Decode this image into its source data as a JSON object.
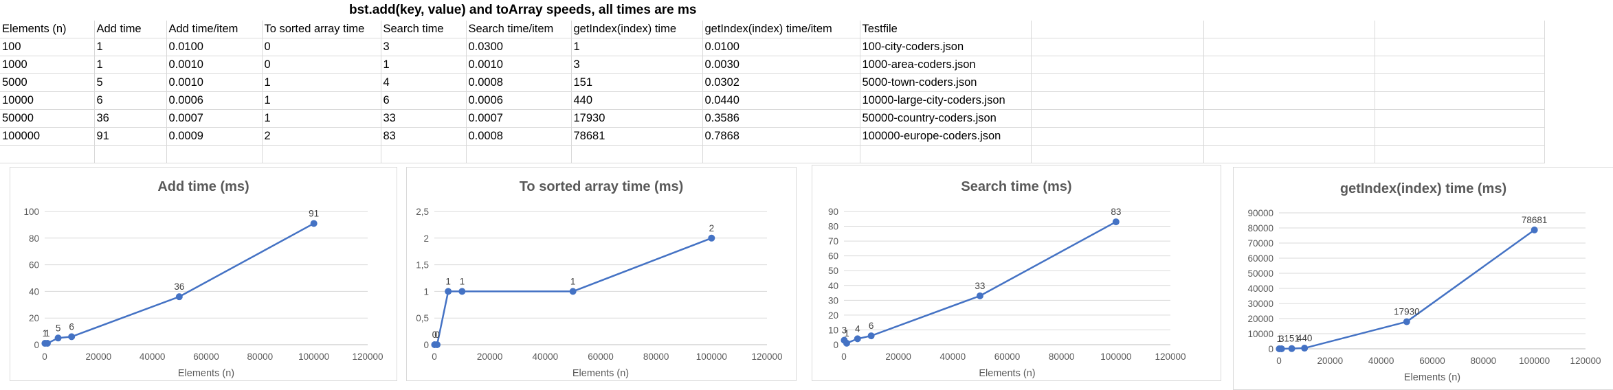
{
  "sheet": {
    "title": "bst.add(key, value) and toArray speeds, all times are ms",
    "headers": [
      "Elements (n)",
      "Add time",
      "Add time/item",
      "To sorted array time",
      "Search time",
      "Search time/item",
      "getIndex(index) time",
      "getIndex(index) time/item",
      "Testfile"
    ],
    "rows": [
      [
        "100",
        "1",
        "0.0100",
        "0",
        "3",
        "0.0300",
        "1",
        "0.0100",
        "100-city-coders.json"
      ],
      [
        "1000",
        "1",
        "0.0010",
        "0",
        "1",
        "0.0010",
        "3",
        "0.0030",
        "1000-area-coders.json"
      ],
      [
        "5000",
        "5",
        "0.0010",
        "1",
        "4",
        "0.0008",
        "151",
        "0.0302",
        "5000-town-coders.json"
      ],
      [
        "10000",
        "6",
        "0.0006",
        "1",
        "6",
        "0.0006",
        "440",
        "0.0440",
        "10000-large-city-coders.json"
      ],
      [
        "50000",
        "36",
        "0.0007",
        "1",
        "33",
        "0.0007",
        "17930",
        "0.3586",
        "50000-country-coders.json"
      ],
      [
        "100000",
        "91",
        "0.0009",
        "2",
        "83",
        "0.0008",
        "78681",
        "0.7868",
        "100000-europe-coders.json"
      ]
    ]
  },
  "chart_data": [
    {
      "type": "line",
      "title": "Add time (ms)",
      "xlabel": "Elements (n)",
      "x": [
        100,
        1000,
        5000,
        10000,
        50000,
        100000
      ],
      "y": [
        1,
        1,
        5,
        6,
        36,
        91
      ],
      "data_labels": [
        "1",
        "1",
        "5",
        "6",
        "36",
        "91"
      ],
      "xlim": [
        0,
        120000
      ],
      "xticks": [
        0,
        20000,
        40000,
        60000,
        80000,
        100000,
        120000
      ],
      "xtick_labels": [
        "0",
        "20000",
        "40000",
        "60000",
        "80000",
        "100000",
        "120000"
      ],
      "ylim": [
        0,
        100
      ],
      "yticks": [
        0,
        20,
        40,
        60,
        80,
        100
      ],
      "ytick_labels": [
        "0",
        "20",
        "40",
        "60",
        "80",
        "100"
      ],
      "grid": true,
      "legend": "none",
      "color": "#4472c4"
    },
    {
      "type": "line",
      "title": "To sorted array time (ms)",
      "xlabel": "Elements (n)",
      "x": [
        100,
        1000,
        5000,
        10000,
        50000,
        100000
      ],
      "y": [
        0,
        0,
        1,
        1,
        1,
        2
      ],
      "data_labels": [
        "0",
        "0",
        "1",
        "1",
        "1",
        "2"
      ],
      "xlim": [
        0,
        120000
      ],
      "xticks": [
        0,
        20000,
        40000,
        60000,
        80000,
        100000,
        120000
      ],
      "xtick_labels": [
        "0",
        "20000",
        "40000",
        "60000",
        "80000",
        "100000",
        "120000"
      ],
      "ylim": [
        0,
        2.5
      ],
      "yticks": [
        0,
        0.5,
        1,
        1.5,
        2,
        2.5
      ],
      "ytick_labels": [
        "0",
        "0,5",
        "1",
        "1,5",
        "2",
        "2,5"
      ],
      "grid": true,
      "legend": "none",
      "color": "#4472c4"
    },
    {
      "type": "line",
      "title": "Search time (ms)",
      "xlabel": "Elements (n)",
      "x": [
        100,
        1000,
        5000,
        10000,
        50000,
        100000
      ],
      "y": [
        3,
        1,
        4,
        6,
        33,
        83
      ],
      "data_labels": [
        "3",
        "1",
        "4",
        "6",
        "33",
        "83"
      ],
      "xlim": [
        0,
        120000
      ],
      "xticks": [
        0,
        20000,
        40000,
        60000,
        80000,
        100000,
        120000
      ],
      "xtick_labels": [
        "0",
        "20000",
        "40000",
        "60000",
        "80000",
        "100000",
        "120000"
      ],
      "ylim": [
        0,
        90
      ],
      "yticks": [
        0,
        10,
        20,
        30,
        40,
        50,
        60,
        70,
        80,
        90
      ],
      "ytick_labels": [
        "0",
        "10",
        "20",
        "30",
        "40",
        "50",
        "60",
        "70",
        "80",
        "90"
      ],
      "grid": true,
      "legend": "none",
      "color": "#4472c4"
    },
    {
      "type": "line",
      "title": "getIndex(index) time (ms)",
      "xlabel": "Elements (n)",
      "x": [
        100,
        1000,
        5000,
        10000,
        50000,
        100000
      ],
      "y": [
        1,
        3,
        151,
        440,
        17930,
        78681
      ],
      "data_labels": [
        "1",
        "3",
        "151",
        "440",
        "17930",
        "78681"
      ],
      "xlim": [
        0,
        120000
      ],
      "xticks": [
        0,
        20000,
        40000,
        60000,
        80000,
        100000,
        120000
      ],
      "xtick_labels": [
        "0",
        "20000",
        "40000",
        "60000",
        "80000",
        "100000",
        "120000"
      ],
      "ylim": [
        0,
        90000
      ],
      "yticks": [
        0,
        10000,
        20000,
        30000,
        40000,
        50000,
        60000,
        70000,
        80000,
        90000
      ],
      "ytick_labels": [
        "0",
        "10000",
        "20000",
        "30000",
        "40000",
        "50000",
        "60000",
        "70000",
        "80000",
        "90000"
      ],
      "grid": true,
      "legend": "none",
      "color": "#4472c4"
    }
  ]
}
